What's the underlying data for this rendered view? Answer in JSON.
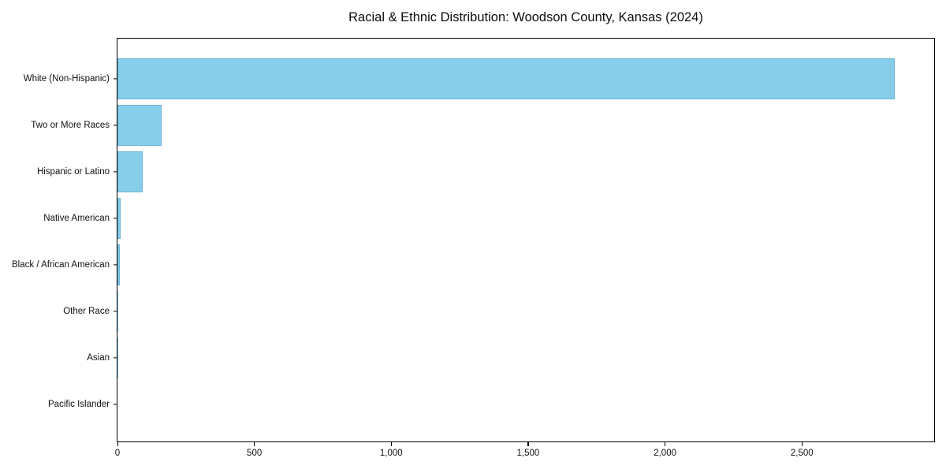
{
  "chart_data": {
    "type": "bar",
    "orientation": "horizontal",
    "title": "Racial & Ethnic Distribution: Woodson County, Kansas (2024)",
    "xlabel": "",
    "ylabel": "",
    "categories": [
      "White (Non-Hispanic)",
      "Two or More Races",
      "Hispanic or Latino",
      "Native American",
      "Black / African American",
      "Other Race",
      "Asian",
      "Pacific Islander"
    ],
    "values": [
      2840,
      160,
      91,
      11,
      10,
      2,
      1,
      0
    ],
    "xlim": [
      0,
      2983
    ],
    "x_tick_values": [
      0,
      500,
      1000,
      1500,
      2000,
      2500
    ],
    "x_tick_labels": [
      "0",
      "500",
      "1,000",
      "1,500",
      "2,000",
      "2,500"
    ],
    "bar_color": "#87CEEB",
    "grid": false,
    "legend": null
  }
}
